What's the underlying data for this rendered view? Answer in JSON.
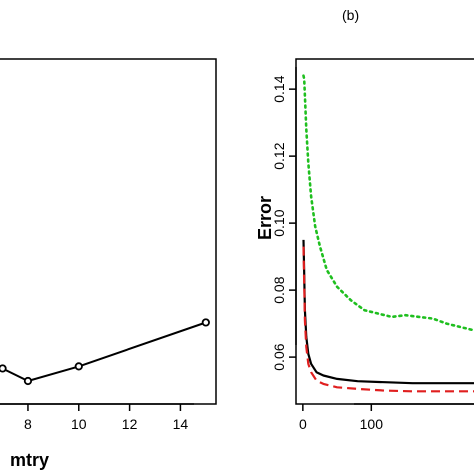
{
  "chart_data": [
    {
      "type": "line",
      "panel_label": "",
      "title": "",
      "xlabel": "mtry",
      "ylabel": "",
      "x_ticks": [
        "8",
        "10",
        "12",
        "14"
      ],
      "xlim": [
        6.9,
        15.4
      ],
      "ylim": [
        0.0545,
        0.071
      ],
      "series": [
        {
          "name": "",
          "style": "solid-with-circles",
          "color": "#000000",
          "points": [
            {
              "x": 7,
              "y": 0.0562
            },
            {
              "x": 8,
              "y": 0.0556
            },
            {
              "x": 10,
              "y": 0.0563
            },
            {
              "x": 15,
              "y": 0.0584
            }
          ]
        }
      ]
    },
    {
      "type": "line",
      "panel_label": "(b)",
      "title": "",
      "xlabel": "",
      "ylabel": "Error",
      "y_ticks": [
        "0.06",
        "0.08",
        "0.10",
        "0.12",
        "0.14"
      ],
      "x_ticks": [
        "0",
        "100"
      ],
      "xlim": [
        -10,
        250
      ],
      "ylim": [
        0.046,
        0.149
      ],
      "series": [
        {
          "name": "",
          "style": "dotted",
          "color": "#1fbf1f",
          "points": [
            {
              "x": 1,
              "y": 0.144
            },
            {
              "x": 2,
              "y": 0.143
            },
            {
              "x": 3,
              "y": 0.138
            },
            {
              "x": 5,
              "y": 0.128
            },
            {
              "x": 8,
              "y": 0.118
            },
            {
              "x": 12,
              "y": 0.108
            },
            {
              "x": 18,
              "y": 0.099
            },
            {
              "x": 25,
              "y": 0.093
            },
            {
              "x": 35,
              "y": 0.086
            },
            {
              "x": 50,
              "y": 0.081
            },
            {
              "x": 70,
              "y": 0.077
            },
            {
              "x": 90,
              "y": 0.074
            },
            {
              "x": 110,
              "y": 0.073
            },
            {
              "x": 130,
              "y": 0.072
            },
            {
              "x": 150,
              "y": 0.0725
            },
            {
              "x": 170,
              "y": 0.072
            },
            {
              "x": 190,
              "y": 0.0715
            },
            {
              "x": 210,
              "y": 0.07
            },
            {
              "x": 230,
              "y": 0.069
            },
            {
              "x": 250,
              "y": 0.068
            }
          ]
        },
        {
          "name": "",
          "style": "solid",
          "color": "#000000",
          "points": [
            {
              "x": 1,
              "y": 0.095
            },
            {
              "x": 2,
              "y": 0.085
            },
            {
              "x": 3,
              "y": 0.074
            },
            {
              "x": 5,
              "y": 0.066
            },
            {
              "x": 8,
              "y": 0.061
            },
            {
              "x": 12,
              "y": 0.058
            },
            {
              "x": 20,
              "y": 0.0555
            },
            {
              "x": 30,
              "y": 0.0545
            },
            {
              "x": 50,
              "y": 0.0535
            },
            {
              "x": 80,
              "y": 0.0528
            },
            {
              "x": 120,
              "y": 0.0525
            },
            {
              "x": 160,
              "y": 0.0522
            },
            {
              "x": 200,
              "y": 0.0522
            },
            {
              "x": 250,
              "y": 0.0522
            }
          ]
        },
        {
          "name": "",
          "style": "dashed",
          "color": "#e01f1f",
          "points": [
            {
              "x": 1,
              "y": 0.093
            },
            {
              "x": 2,
              "y": 0.082
            },
            {
              "x": 3,
              "y": 0.071
            },
            {
              "x": 5,
              "y": 0.063
            },
            {
              "x": 8,
              "y": 0.058
            },
            {
              "x": 12,
              "y": 0.0555
            },
            {
              "x": 20,
              "y": 0.053
            },
            {
              "x": 30,
              "y": 0.052
            },
            {
              "x": 50,
              "y": 0.051
            },
            {
              "x": 80,
              "y": 0.0505
            },
            {
              "x": 120,
              "y": 0.05
            },
            {
              "x": 160,
              "y": 0.0498
            },
            {
              "x": 200,
              "y": 0.0498
            },
            {
              "x": 250,
              "y": 0.0498
            }
          ]
        }
      ]
    }
  ]
}
